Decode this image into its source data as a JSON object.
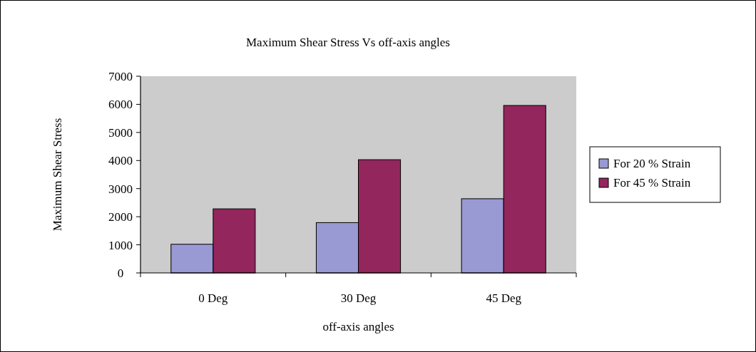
{
  "chart_data": {
    "type": "bar",
    "title": "Maximum Shear  Stress Vs off-axis angles",
    "xlabel": "off-axis angles",
    "ylabel": "Maximum Shear  Stress",
    "categories": [
      "0 Deg",
      "30 Deg",
      "45 Deg"
    ],
    "series": [
      {
        "name": "For 20 %  Strain",
        "color": "#9999d3",
        "values": [
          1020,
          1790,
          2640
        ]
      },
      {
        "name": "For 45 %  Strain",
        "color": "#93265c",
        "values": [
          2280,
          4030,
          5960
        ]
      }
    ],
    "ylim": [
      0,
      7000
    ],
    "yticks": [
      0,
      1000,
      2000,
      3000,
      4000,
      5000,
      6000,
      7000
    ],
    "grid": false,
    "legend": "right"
  }
}
